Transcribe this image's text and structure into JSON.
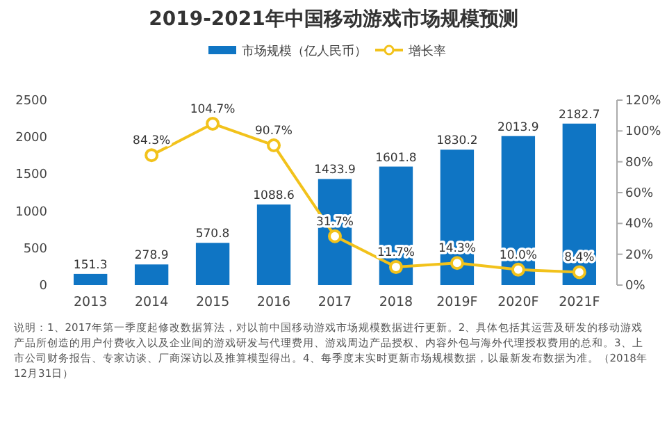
{
  "chart_data": {
    "type": "bar",
    "title": "2019-2021年中国移动游戏市场规模预测",
    "categories": [
      "2013",
      "2014",
      "2015",
      "2016",
      "2017",
      "2018",
      "2019F",
      "2020F",
      "2021F"
    ],
    "series": [
      {
        "name": "市场规模（亿人民币）",
        "color": "#0f75c4",
        "values": [
          151.3,
          278.9,
          570.8,
          1088.6,
          1433.9,
          1601.8,
          1830.2,
          2013.9,
          2182.7
        ]
      },
      {
        "name": "增长率",
        "type": "line",
        "axis": "y2",
        "color": "#f2c21b",
        "marker": "circle",
        "values": [
          null,
          84.3,
          104.7,
          90.7,
          31.7,
          11.7,
          14.3,
          10.0,
          8.4
        ],
        "value_labels": [
          null,
          "84.3%",
          "104.7%",
          "90.7%",
          "31.7%",
          "11.7%",
          "14.3%",
          "10.0%",
          "8.4%"
        ]
      }
    ],
    "data_labels": true,
    "ylim": [
      0,
      2500
    ],
    "yticks": [
      0,
      500,
      1000,
      1500,
      2000,
      2500
    ],
    "y2lim": [
      0,
      120
    ],
    "y2ticks": [
      {
        "value": 0,
        "label": "0%"
      },
      {
        "value": 20,
        "label": "20%"
      },
      {
        "value": 40,
        "label": "40%"
      },
      {
        "value": 60,
        "label": "60%"
      },
      {
        "value": 80,
        "label": "80%"
      },
      {
        "value": 100,
        "label": "100%"
      },
      {
        "value": 120,
        "label": "120%"
      }
    ],
    "legend": "top",
    "grid": false,
    "annotations": [
      "说明：1、2017年第一季度起修改数据算法，对以前中国移动游戏市场规模数据进行更新。2、具体包括其运营及研发的移动游戏产品所创造的用户付费收入以及企业间的游戏研发与代理费用、游戏周边产品授权、内容外包与海外代理授权费用的总和。3、上市公司财务报告、专家访谈、厂商深访以及推算模型得出。4、每季度末实时更新市场规模数据，以最新发布数据为准。（2018年12月31日）"
    ]
  }
}
